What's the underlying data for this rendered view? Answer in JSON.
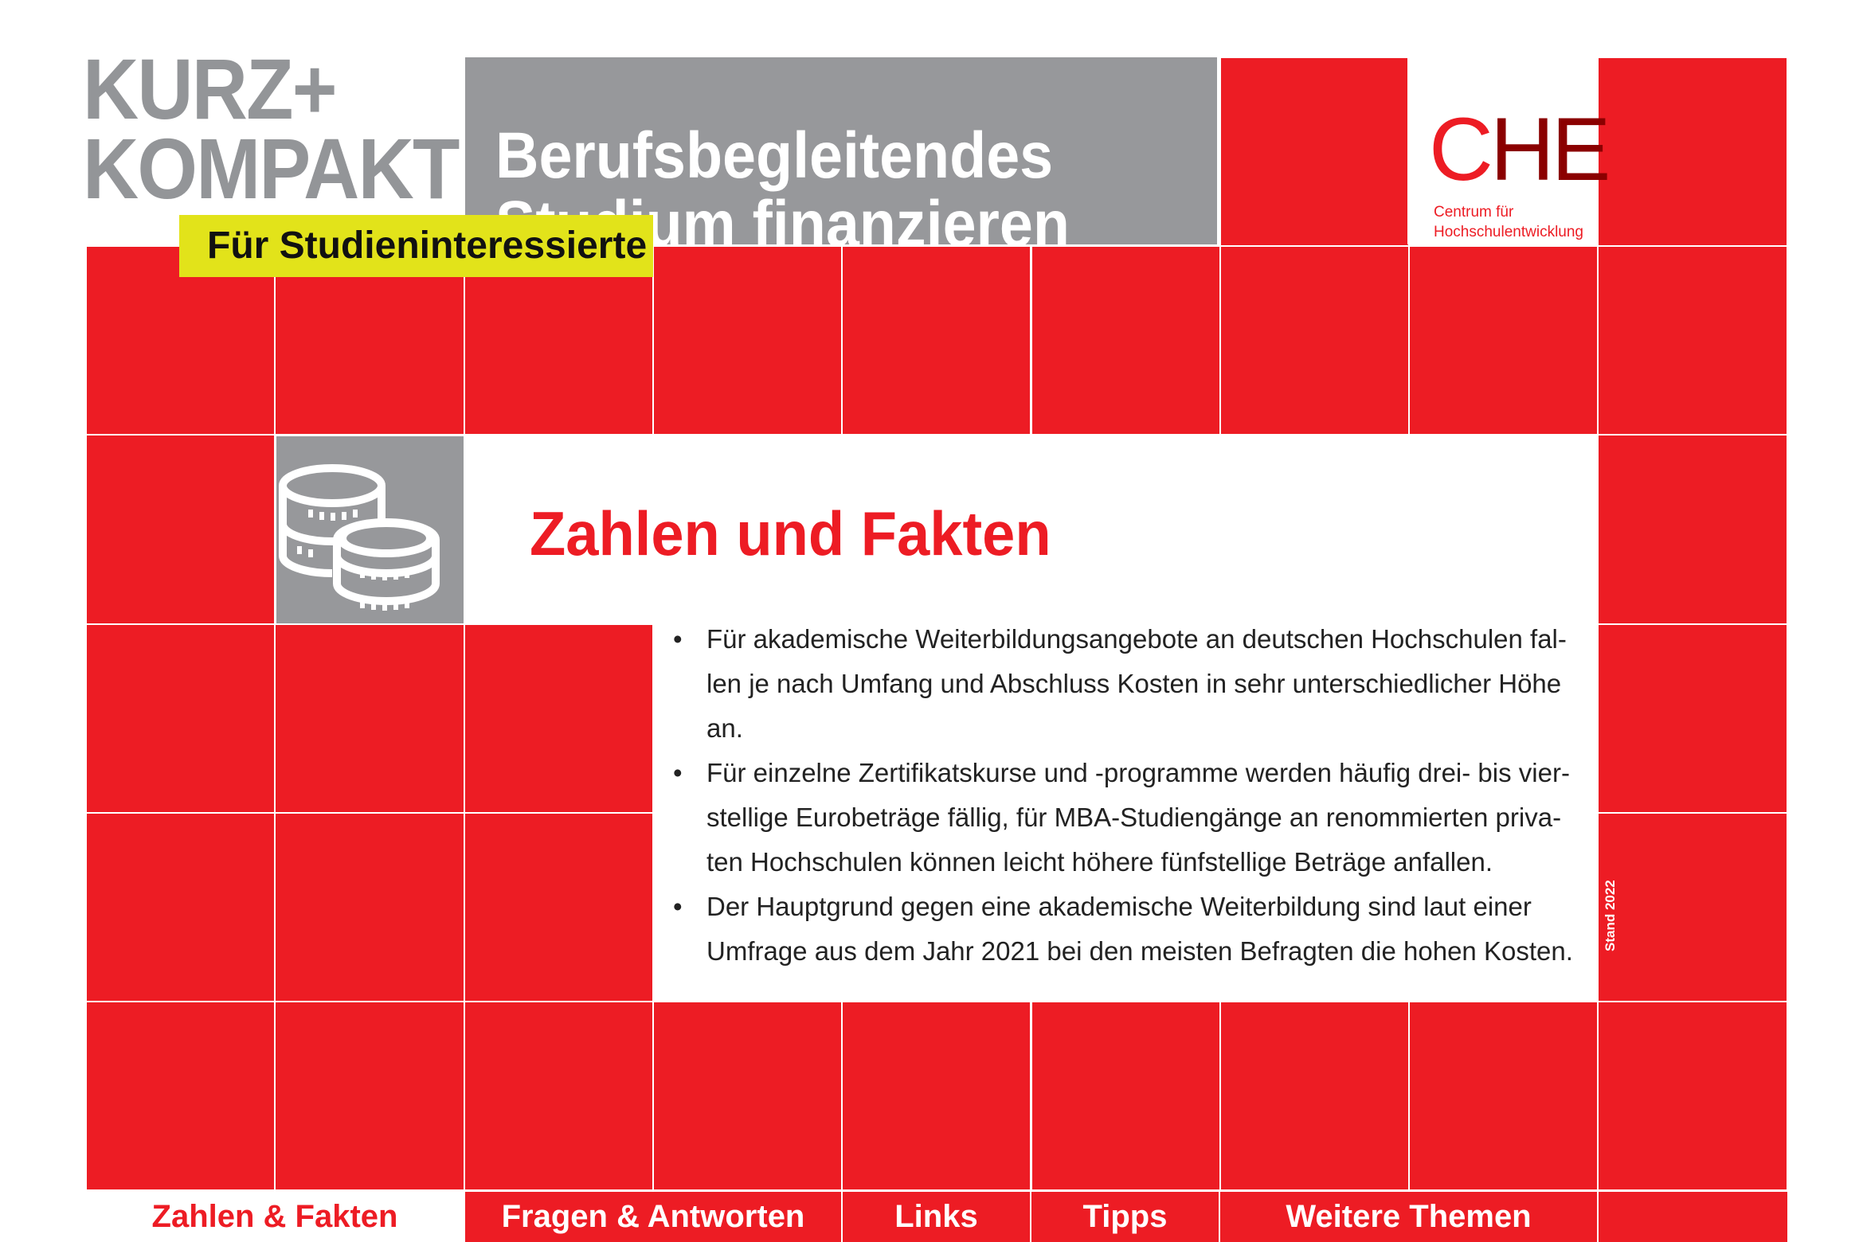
{
  "brand": {
    "line1": "KURZ+",
    "line2": "KOMPAKT"
  },
  "title": {
    "line1": "Berufsbegleitendes",
    "line2": "Studium finanzieren"
  },
  "audience_label": "Für Studieninteressierte",
  "logo": {
    "c": "C",
    "he": "HE",
    "line1": "Centrum für",
    "line2": "Hochschulentwicklung"
  },
  "section": {
    "icon": "coins-icon",
    "heading": "Zahlen und Fakten",
    "bullets": [
      "Für akademische Weiterbildungsangebote an deutschen Hochschulen fal-len je nach Umfang und Abschluss Kosten in sehr unterschiedlicher Höhe an.",
      "Für einzelne Zertifikatskurse und -programme werden häufig drei- bis vier-stellige Eurobeträge fällig, für MBA-Studiengänge an renommierten priva-ten Hochschulen können leicht höhere fünfstellige Beträge anfallen.",
      "Der Hauptgrund gegen eine akademische Weiterbildung sind laut einer Umfrage aus dem Jahr 2021 bei den meisten Befragten die hohen Kosten."
    ]
  },
  "stand": "Stand 2022",
  "nav": [
    {
      "label": "Zahlen & Fakten",
      "active": true
    },
    {
      "label": "Fragen & Antworten",
      "active": false
    },
    {
      "label": "Links",
      "active": false
    },
    {
      "label": "Tipps",
      "active": false
    },
    {
      "label": "Weitere Themen",
      "active": false
    }
  ],
  "colors": {
    "red": "#ed1c24",
    "dark_red": "#8b0000",
    "gray": "#97989b",
    "yellow": "#e2e31a"
  }
}
